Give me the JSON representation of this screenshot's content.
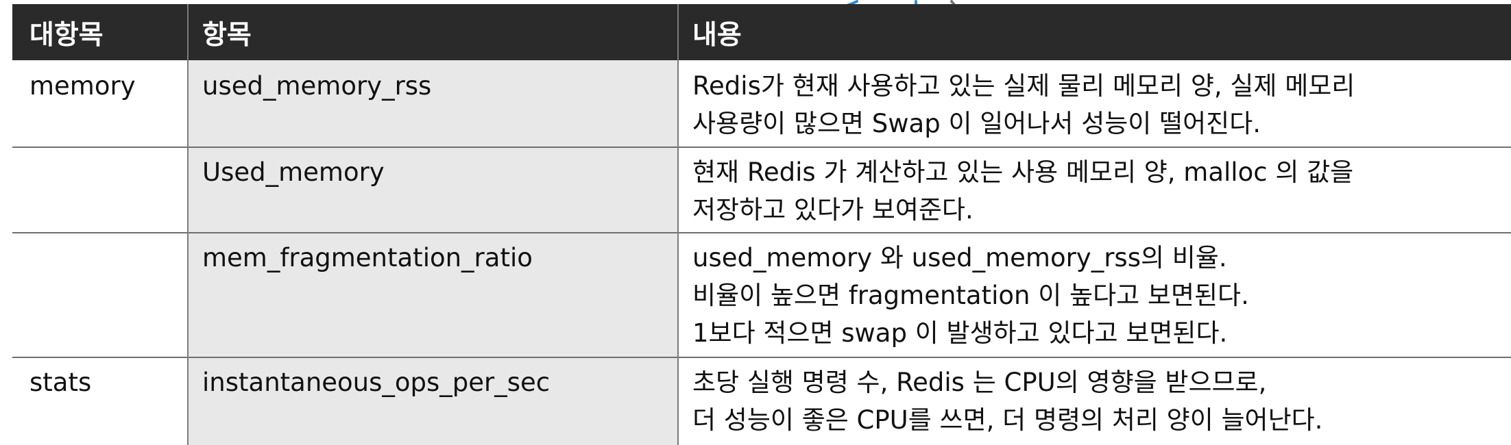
{
  "table": {
    "headers": [
      "대항목",
      "항목",
      "내용"
    ],
    "rows": [
      {
        "category": "memory",
        "item": "used_memory_rss",
        "content_lines": [
          "Redis가 현재 사용하고 있는 실제 물리 메모리 양, 실제 메모리",
          "사용량이 많으면 Swap 이 일어나서 성능이 떨어진다."
        ]
      },
      {
        "category": "",
        "item": "Used_memory",
        "content_lines": [
          "현재 Redis 가 계산하고 있는 사용 메모리 양, malloc 의 값을",
          "저장하고 있다가 보여준다."
        ]
      },
      {
        "category": "",
        "item": "mem_fragmentation_ratio",
        "content_lines": [
          "used_memory 와 used_memory_rss의 비율.",
          "비율이 높으면 fragmentation 이 높다고 보면된다.",
          "1보다 적으면 swap 이 발생하고 있다고 보면된다."
        ]
      },
      {
        "category": "stats",
        "item": "instantaneous_ops_per_sec",
        "content_lines": [
          "초당 실행 명령 수, Redis 는 CPU의 영향을 받으므로,",
          "더 성능이 좋은 CPU를 쓰면, 더 명령의 처리 양이 늘어난다."
        ]
      }
    ]
  },
  "colors": {
    "header_bg": "#2a2a2a",
    "header_text": "#ffffff",
    "item_col_bg": "#e8e8e8",
    "line": "#6f6f6f",
    "pen_mark": "#2f8ad8"
  }
}
